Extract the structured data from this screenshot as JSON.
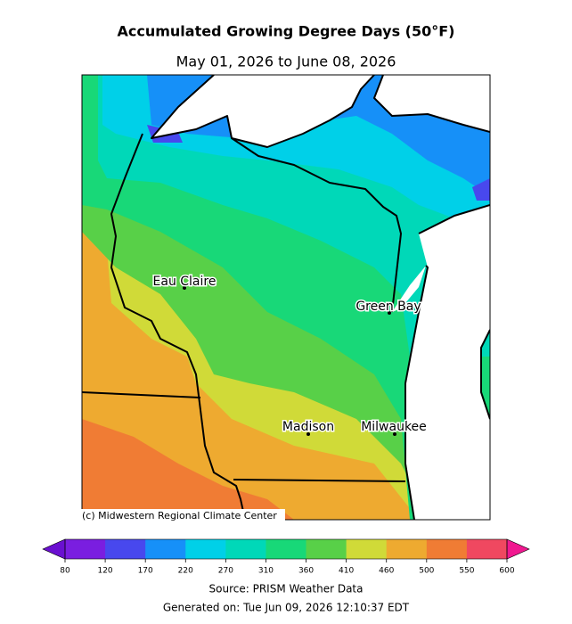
{
  "title": "Accumulated Growing Degree Days (50°F)",
  "subtitle": "May 01, 2026 to June 08, 2026",
  "cities": [
    "Eau Claire",
    "Green Bay",
    "Madison",
    "Milwaukee"
  ],
  "credit": "(c) Midwestern Regional Climate Center",
  "colorbar": {
    "ticks": [
      80,
      120,
      170,
      220,
      270,
      310,
      360,
      410,
      460,
      500,
      550,
      600
    ],
    "colors": [
      "#7a1ee0",
      "#4848ee",
      "#1690f8",
      "#00d0e8",
      "#00d8b8",
      "#18d878",
      "#58d048",
      "#d0da38",
      "#eeaa30",
      "#f07c34",
      "#f04860"
    ],
    "under_color": "#6a10d0",
    "over_color": "#f01890"
  },
  "source": "Source: PRISM Weather Data",
  "generated": "Generated on: Tue Jun 09, 2026 12:10:37 EDT"
}
